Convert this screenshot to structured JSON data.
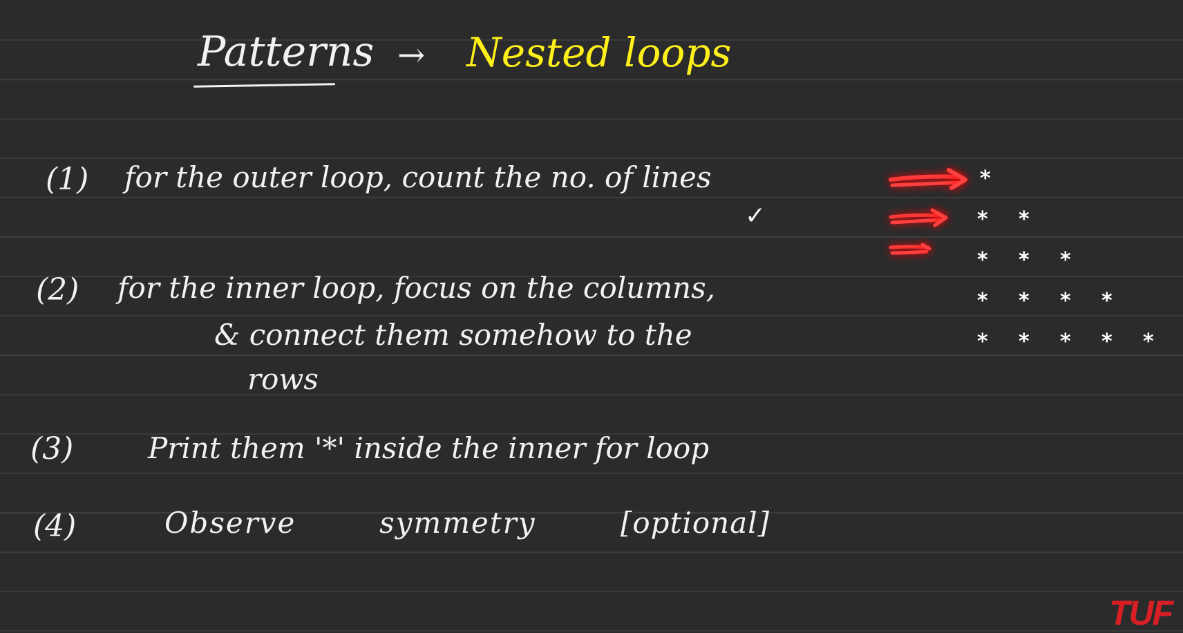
{
  "title": {
    "main": "Patterns",
    "arrow": "→",
    "sub": "Nested loops",
    "sub_color": "#ffef1a"
  },
  "steps": [
    {
      "num": "(1)",
      "lines": [
        "for the outer loop, count the no. of lines"
      ],
      "check": "✓"
    },
    {
      "num": "(2)",
      "lines": [
        "for the inner loop, focus on the columns,",
        "& connect them somehow to the",
        "rows"
      ]
    },
    {
      "num": "(3)",
      "lines": [
        "Print them '*' inside the inner for loop"
      ]
    },
    {
      "num": "(4)",
      "lines": [
        "Observe",
        "symmetry",
        "[optional]"
      ]
    }
  ],
  "pattern": {
    "rows": [
      1,
      2,
      3,
      4,
      5
    ],
    "glyph": "*",
    "highlight_arrows": 3,
    "arrow_color": "#ff2a2a"
  },
  "watermark": {
    "text": "TUF",
    "color": "#d91f26"
  }
}
